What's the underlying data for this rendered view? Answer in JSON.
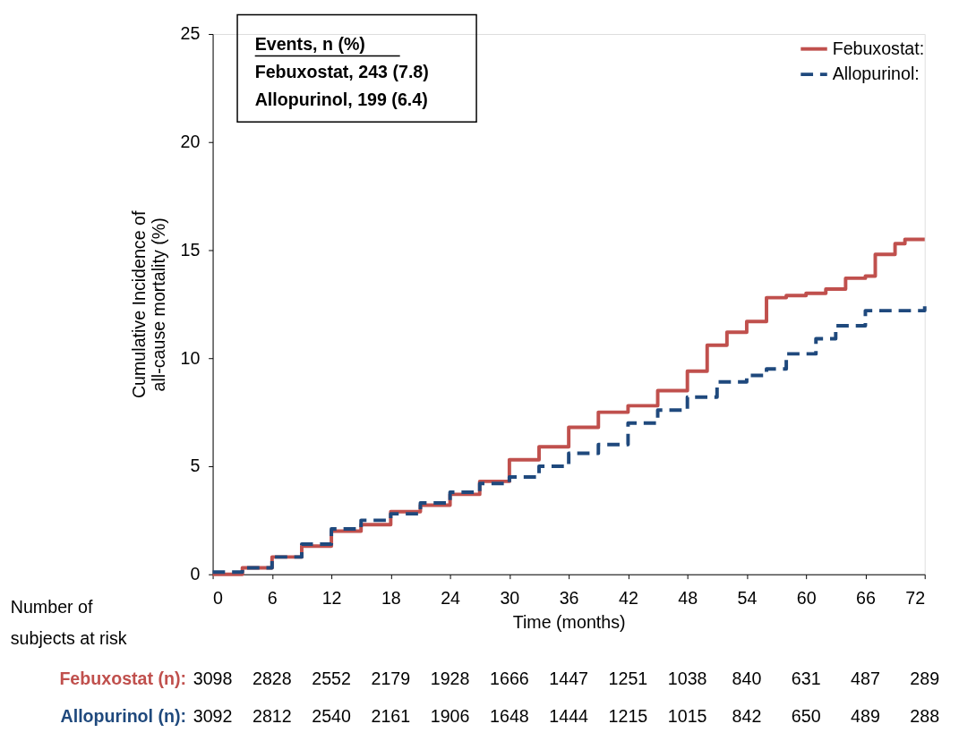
{
  "chart_data": {
    "type": "step",
    "xlabel": "Time (months)",
    "ylabel": "Cumulative Incidence of\nall-cause mortality (%)",
    "xlim": [
      0,
      72
    ],
    "xticks": [
      0,
      6,
      12,
      18,
      24,
      30,
      36,
      42,
      48,
      54,
      60,
      66,
      72
    ],
    "ylim": [
      0,
      25
    ],
    "yticks": [
      0,
      5,
      10,
      15,
      20,
      25
    ],
    "grid": false,
    "legend": "top right",
    "series": [
      {
        "name": "Febuxostat:",
        "color": "#c0504d",
        "line_style": "solid",
        "x": [
          0,
          3,
          6,
          9,
          12,
          15,
          18,
          21,
          24,
          27,
          30,
          33,
          36,
          39,
          42,
          45,
          48,
          50,
          52,
          54,
          56,
          58,
          60,
          62,
          64,
          66,
          67,
          69,
          70,
          72
        ],
        "values": [
          0,
          0.3,
          0.8,
          1.3,
          2.0,
          2.3,
          2.9,
          3.2,
          3.7,
          4.3,
          5.3,
          5.9,
          6.8,
          7.5,
          7.8,
          8.5,
          9.4,
          10.6,
          11.2,
          11.7,
          12.8,
          12.9,
          13.0,
          13.2,
          13.7,
          13.8,
          14.8,
          15.3,
          15.5,
          15.5
        ]
      },
      {
        "name": "Allopurinol:",
        "color": "#1f497d",
        "line_style": "dashed",
        "x": [
          0,
          3,
          6,
          9,
          12,
          15,
          18,
          21,
          24,
          27,
          30,
          33,
          36,
          39,
          42,
          45,
          48,
          51,
          54,
          56,
          58,
          61,
          63,
          66,
          72
        ],
        "values": [
          0.1,
          0.3,
          0.8,
          1.4,
          2.1,
          2.5,
          2.8,
          3.3,
          3.8,
          4.2,
          4.5,
          5.0,
          5.6,
          6.0,
          7.0,
          7.6,
          8.2,
          8.9,
          9.2,
          9.5,
          10.2,
          10.9,
          11.5,
          12.2,
          12.4
        ]
      }
    ],
    "annotations": [
      "Events, n (%)",
      "Febuxostat, 243 (7.8)",
      "Allopurinol, 199 (6.4)",
      "Number of\nsubjects at risk",
      "Febuxostat (n):",
      "3098",
      "2828",
      "2552",
      "2179",
      "1928",
      "1666",
      "1447",
      "1251",
      "1038",
      "840",
      "631",
      "487",
      "289",
      "Allopurinol (n):",
      "3092",
      "2812",
      "2540",
      "2161",
      "1906",
      "1648",
      "1444",
      "1215",
      "1015",
      "842",
      "650",
      "489",
      "288"
    ]
  }
}
